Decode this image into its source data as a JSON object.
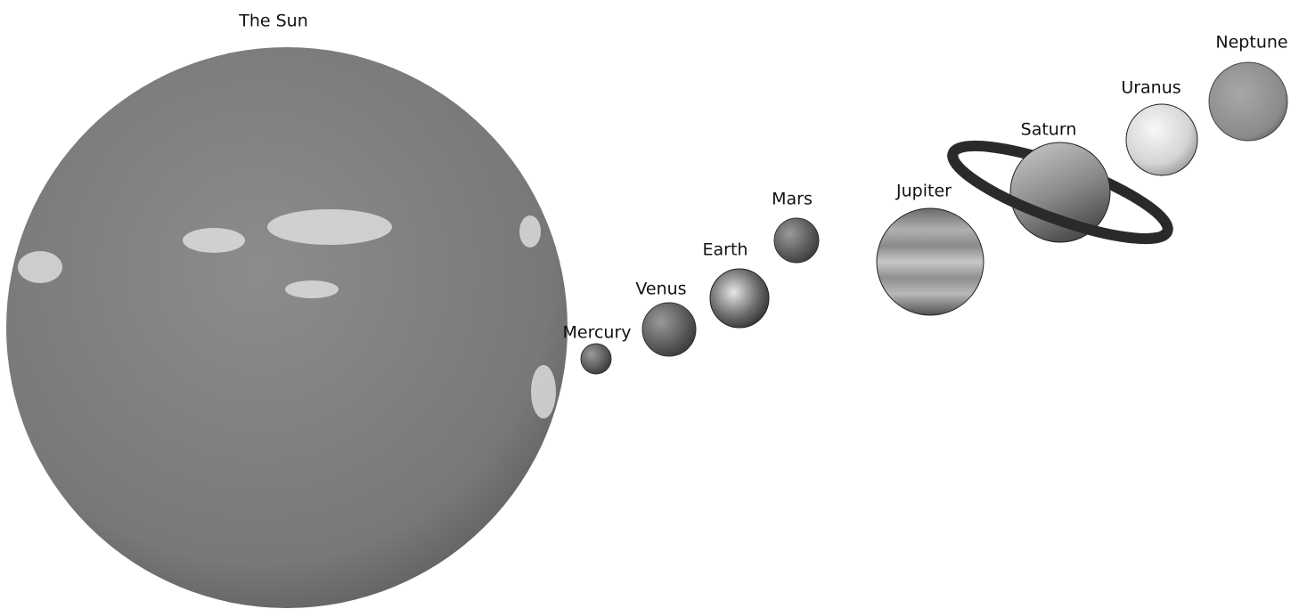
{
  "bodies": [
    {
      "label": "The Sun"
    },
    {
      "label": "Mercury"
    },
    {
      "label": "Venus"
    },
    {
      "label": "Earth"
    },
    {
      "label": "Mars"
    },
    {
      "label": "Jupiter"
    },
    {
      "label": "Saturn"
    },
    {
      "label": "Uranus"
    },
    {
      "label": "Neptune"
    }
  ]
}
